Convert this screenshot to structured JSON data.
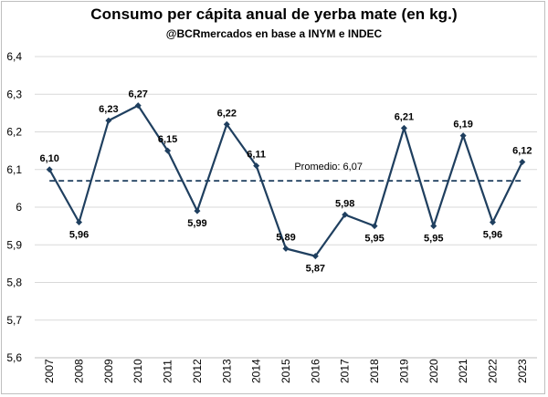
{
  "chart_data": {
    "type": "line",
    "title": "Consumo per cápita anual de yerba mate (en kg.)",
    "subtitle": "@BCRmercados en base a INYM e INDEC",
    "categories": [
      "2007",
      "2008",
      "2009",
      "2010",
      "2011",
      "2012",
      "2013",
      "2014",
      "2015",
      "2016",
      "2017",
      "2018",
      "2019",
      "2020",
      "2021",
      "2022",
      "2023"
    ],
    "series": [
      {
        "values": [
          6.1,
          5.96,
          6.23,
          6.27,
          6.15,
          5.99,
          6.22,
          6.11,
          5.89,
          5.87,
          5.98,
          5.95,
          6.21,
          5.95,
          6.19,
          5.96,
          6.12
        ],
        "labels": [
          "6,10",
          "5,96",
          "6,23",
          "6,27",
          "6,15",
          "5,99",
          "6,22",
          "6,11",
          "5,89",
          "5,87",
          "5,98",
          "5,95",
          "6,21",
          "5,95",
          "6,19",
          "5,96",
          "6,12"
        ],
        "color": "#1f3f5f"
      }
    ],
    "reference_line": {
      "label": "Promedio: 6,07",
      "value": 6.07,
      "style": "dashed",
      "color": "#1f3f5f"
    },
    "ylim": [
      5.6,
      6.4
    ],
    "yticks": [
      5.6,
      5.7,
      5.8,
      5.9,
      6.0,
      6.1,
      6.2,
      6.3,
      6.4
    ],
    "ytick_labels": [
      "5,6",
      "5,7",
      "5,8",
      "5,9",
      "6",
      "6,1",
      "6,2",
      "6,3",
      "6,4"
    ],
    "grid": true,
    "xlabel": "",
    "ylabel": ""
  }
}
